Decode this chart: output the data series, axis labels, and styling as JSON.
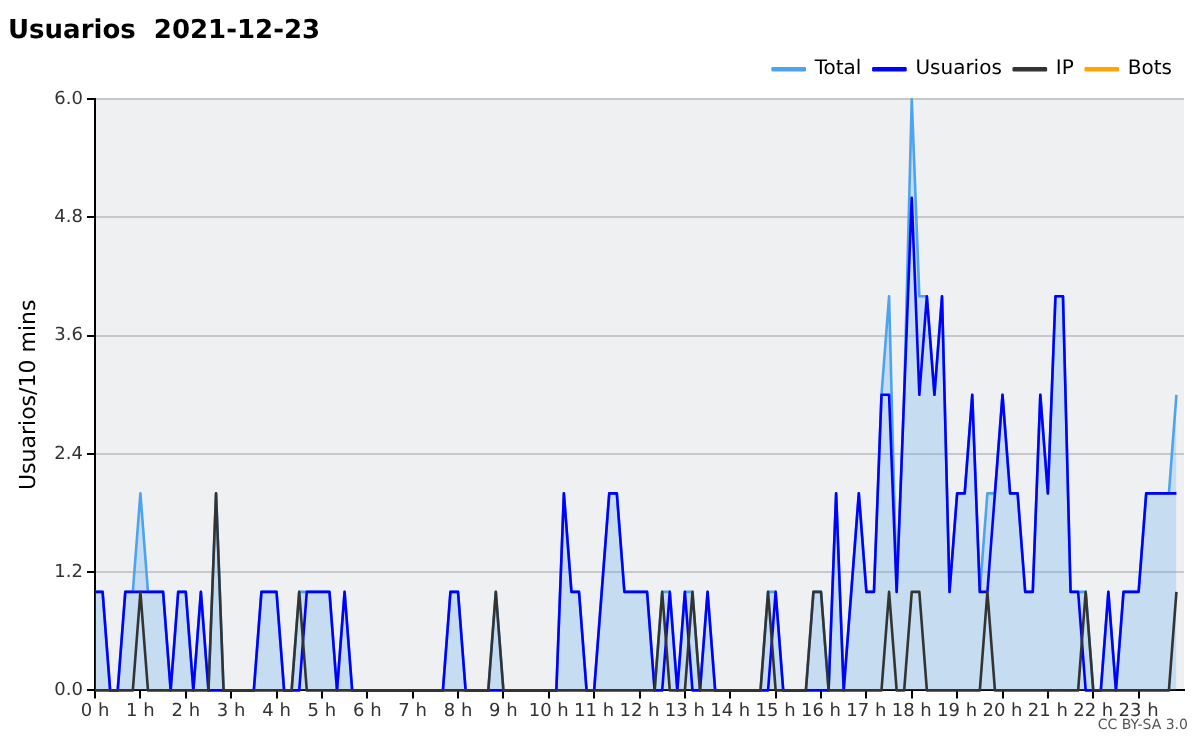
{
  "chart_data": {
    "type": "line",
    "title": "Usuarios  2021-12-23",
    "ylabel": "Usuarios/10 mins",
    "annotations": [
      "CC BY-SA 3.0"
    ],
    "x": [
      0,
      0.167,
      0.333,
      0.5,
      0.667,
      0.833,
      1,
      1.167,
      1.333,
      1.5,
      1.667,
      1.833,
      2,
      2.167,
      2.333,
      2.5,
      2.667,
      2.833,
      3,
      3.167,
      3.333,
      3.5,
      3.667,
      3.833,
      4,
      4.167,
      4.333,
      4.5,
      4.667,
      4.833,
      5,
      5.167,
      5.333,
      5.5,
      5.667,
      5.833,
      6,
      6.167,
      6.333,
      6.5,
      6.667,
      6.833,
      7,
      7.167,
      7.333,
      7.5,
      7.667,
      7.833,
      8,
      8.167,
      8.333,
      8.5,
      8.667,
      8.833,
      9,
      9.167,
      9.333,
      9.5,
      9.667,
      9.833,
      10,
      10.167,
      10.333,
      10.5,
      10.667,
      10.833,
      11,
      11.167,
      11.333,
      11.5,
      11.667,
      11.833,
      12,
      12.167,
      12.333,
      12.5,
      12.667,
      12.833,
      13,
      13.167,
      13.333,
      13.5,
      13.667,
      13.833,
      14,
      14.167,
      14.333,
      14.5,
      14.667,
      14.833,
      15,
      15.167,
      15.333,
      15.5,
      15.667,
      15.833,
      16,
      16.167,
      16.333,
      16.5,
      16.667,
      16.833,
      17,
      17.167,
      17.333,
      17.5,
      17.667,
      17.833,
      18,
      18.167,
      18.333,
      18.5,
      18.667,
      18.833,
      19,
      19.167,
      19.333,
      19.5,
      19.667,
      19.833,
      20,
      20.167,
      20.333,
      20.5,
      20.667,
      20.833,
      21,
      21.167,
      21.333,
      21.5,
      21.667,
      21.833,
      22,
      22.167,
      22.333,
      22.5,
      22.667,
      22.833,
      23,
      23.167,
      23.333,
      23.5,
      23.667,
      23.833
    ],
    "series": [
      {
        "name": "Total",
        "type": "area",
        "color": "#4da3ee",
        "values": [
          1,
          1,
          0,
          0,
          1,
          1,
          2,
          1,
          1,
          1,
          0,
          1,
          1,
          0,
          1,
          0,
          2,
          0,
          0,
          0,
          0,
          0,
          1,
          1,
          1,
          0,
          0,
          1,
          1,
          1,
          1,
          1,
          0,
          1,
          0,
          0,
          0,
          0,
          0,
          0,
          0,
          0,
          0,
          0,
          0,
          0,
          0,
          1,
          1,
          0,
          0,
          0,
          0,
          1,
          0,
          0,
          0,
          0,
          0,
          0,
          0,
          0,
          2,
          1,
          1,
          0,
          0,
          1,
          2,
          2,
          1,
          1,
          1,
          1,
          0,
          1,
          1,
          0,
          1,
          1,
          0,
          1,
          0,
          0,
          0,
          0,
          0,
          0,
          0,
          1,
          1,
          0,
          0,
          0,
          0,
          1,
          1,
          0,
          2,
          0,
          1,
          2,
          1,
          1,
          3,
          4,
          1,
          3,
          6,
          4,
          4,
          3,
          4,
          1,
          2,
          2,
          3,
          1,
          2,
          2,
          3,
          2,
          2,
          1,
          1,
          3,
          2,
          4,
          4,
          1,
          1,
          1,
          0,
          0,
          1,
          0,
          1,
          1,
          1,
          2,
          2,
          2,
          2,
          3
        ]
      },
      {
        "name": "Usuarios",
        "type": "line",
        "color": "#0000ff",
        "values": [
          1,
          1,
          0,
          0,
          1,
          1,
          1,
          1,
          1,
          1,
          0,
          1,
          1,
          0,
          1,
          0,
          0,
          0,
          0,
          0,
          0,
          0,
          1,
          1,
          1,
          0,
          0,
          0,
          1,
          1,
          1,
          1,
          0,
          1,
          0,
          0,
          0,
          0,
          0,
          0,
          0,
          0,
          0,
          0,
          0,
          0,
          0,
          1,
          1,
          0,
          0,
          0,
          0,
          0,
          0,
          0,
          0,
          0,
          0,
          0,
          0,
          0,
          2,
          1,
          1,
          0,
          0,
          1,
          2,
          2,
          1,
          1,
          1,
          1,
          0,
          0,
          1,
          0,
          1,
          0,
          0,
          1,
          0,
          0,
          0,
          0,
          0,
          0,
          0,
          0,
          1,
          0,
          0,
          0,
          0,
          0,
          0,
          0,
          2,
          0,
          1,
          2,
          1,
          1,
          3,
          3,
          1,
          3,
          5,
          3,
          4,
          3,
          4,
          1,
          2,
          2,
          3,
          1,
          1,
          2,
          3,
          2,
          2,
          1,
          1,
          3,
          2,
          4,
          4,
          1,
          1,
          0,
          0,
          0,
          1,
          0,
          1,
          1,
          1,
          2,
          2,
          2,
          2,
          2
        ]
      },
      {
        "name": "IP",
        "type": "line",
        "color": "#333333",
        "values": [
          0,
          0,
          0,
          0,
          0,
          0,
          1,
          0,
          0,
          0,
          0,
          0,
          0,
          0,
          0,
          0,
          2,
          0,
          0,
          0,
          0,
          0,
          0,
          0,
          0,
          0,
          0,
          1,
          0,
          0,
          0,
          0,
          0,
          0,
          0,
          0,
          0,
          0,
          0,
          0,
          0,
          0,
          0,
          0,
          0,
          0,
          0,
          0,
          0,
          0,
          0,
          0,
          0,
          1,
          0,
          0,
          0,
          0,
          0,
          0,
          0,
          0,
          0,
          0,
          0,
          0,
          0,
          0,
          0,
          0,
          0,
          0,
          0,
          0,
          0,
          1,
          0,
          0,
          0,
          1,
          0,
          0,
          0,
          0,
          0,
          0,
          0,
          0,
          0,
          1,
          0,
          0,
          0,
          0,
          0,
          1,
          1,
          0,
          0,
          0,
          0,
          0,
          0,
          0,
          0,
          1,
          0,
          0,
          1,
          1,
          0,
          0,
          0,
          0,
          0,
          0,
          0,
          0,
          1,
          0,
          0,
          0,
          0,
          0,
          0,
          0,
          0,
          0,
          0,
          0,
          0,
          1,
          0,
          0,
          0,
          0,
          0,
          0,
          0,
          0,
          0,
          0,
          0,
          1
        ]
      },
      {
        "name": "Bots",
        "type": "line",
        "color": "#ffa500",
        "values": [
          null,
          null,
          null,
          null,
          null,
          null,
          null,
          null,
          null,
          null,
          null,
          null,
          null,
          null,
          null,
          null,
          null,
          null,
          null,
          null,
          null,
          null,
          null,
          null,
          null,
          null,
          null,
          null,
          null,
          null,
          null,
          null,
          null,
          null,
          null,
          null,
          null,
          null,
          null,
          null,
          null,
          null,
          null,
          null,
          null,
          null,
          null,
          null,
          null,
          null,
          null,
          null,
          null,
          null,
          null,
          null,
          null,
          null,
          null,
          null,
          null,
          null,
          null,
          null,
          null,
          null,
          null,
          null,
          null,
          null,
          null,
          null,
          null,
          null,
          null,
          null,
          null,
          null,
          null,
          null,
          null,
          null,
          null,
          null,
          null,
          null,
          null,
          null,
          null,
          null,
          null,
          null,
          null,
          null,
          null,
          null,
          null,
          null,
          null,
          null,
          null,
          null,
          null,
          null,
          null,
          null,
          null,
          null,
          null,
          null,
          null,
          null,
          null,
          null,
          null,
          null,
          null,
          null,
          null,
          null,
          null,
          null,
          null,
          null,
          null,
          null,
          null,
          null,
          null,
          null,
          null,
          null,
          null,
          null,
          null,
          null,
          null,
          null,
          null,
          null,
          null,
          null,
          null,
          null
        ]
      }
    ],
    "xlim": [
      0,
      24
    ],
    "xticks": [
      {
        "value": 0,
        "label": "0 h"
      },
      {
        "value": 1,
        "label": "1 h"
      },
      {
        "value": 2,
        "label": "2 h"
      },
      {
        "value": 3,
        "label": "3 h"
      },
      {
        "value": 4,
        "label": "4 h"
      },
      {
        "value": 5,
        "label": "5 h"
      },
      {
        "value": 6,
        "label": "6 h"
      },
      {
        "value": 7,
        "label": "7 h"
      },
      {
        "value": 8,
        "label": "8 h"
      },
      {
        "value": 9,
        "label": "9 h"
      },
      {
        "value": 10,
        "label": "10 h"
      },
      {
        "value": 11,
        "label": "11 h"
      },
      {
        "value": 12,
        "label": "12 h"
      },
      {
        "value": 13,
        "label": "13 h"
      },
      {
        "value": 14,
        "label": "14 h"
      },
      {
        "value": 15,
        "label": "15 h"
      },
      {
        "value": 16,
        "label": "16 h"
      },
      {
        "value": 17,
        "label": "17 h"
      },
      {
        "value": 18,
        "label": "18 h"
      },
      {
        "value": 19,
        "label": "19 h"
      },
      {
        "value": 20,
        "label": "20 h"
      },
      {
        "value": 21,
        "label": "21 h"
      },
      {
        "value": 22,
        "label": "22 h"
      },
      {
        "value": 23,
        "label": "23 h"
      }
    ],
    "ylim": [
      0,
      6
    ],
    "yticks": [
      {
        "value": 0,
        "label": "0.0"
      },
      {
        "value": 1.2,
        "label": "1.2"
      },
      {
        "value": 2.4,
        "label": "2.4"
      },
      {
        "value": 3.6,
        "label": "3.6"
      },
      {
        "value": 4.8,
        "label": "4.8"
      },
      {
        "value": 6,
        "label": "6.0"
      }
    ],
    "grid": "y",
    "legend": "top right",
    "marker": "none",
    "line_style": "solid"
  }
}
